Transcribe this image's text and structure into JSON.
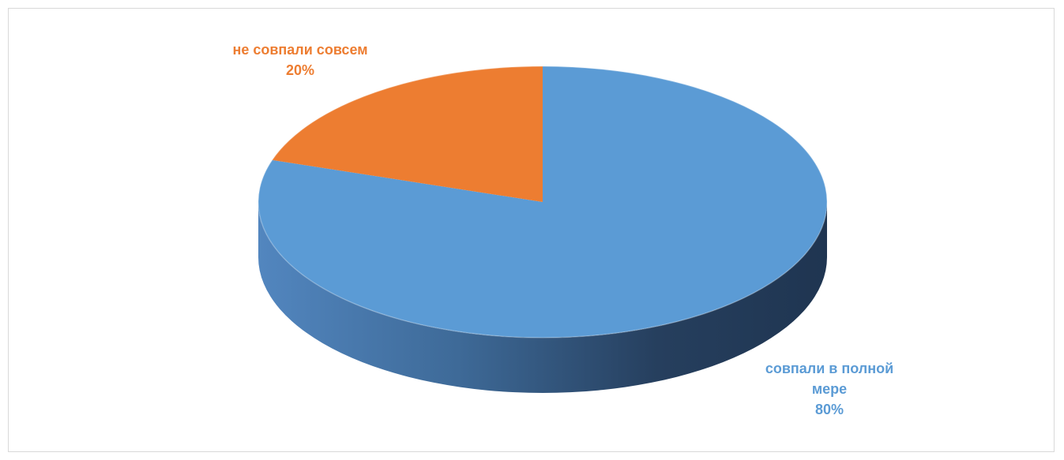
{
  "chart_data": {
    "type": "pie",
    "title": "",
    "start_angle_deg": 90,
    "direction": "clockwise",
    "three_d": true,
    "legend": "none",
    "slices": [
      {
        "label": "совпали в полной мере",
        "value": 80,
        "display": "80%",
        "color": "#5b9bd5"
      },
      {
        "label": "не совпали совсем",
        "value": 20,
        "display": "20%",
        "color": "#ed7d31"
      }
    ]
  }
}
